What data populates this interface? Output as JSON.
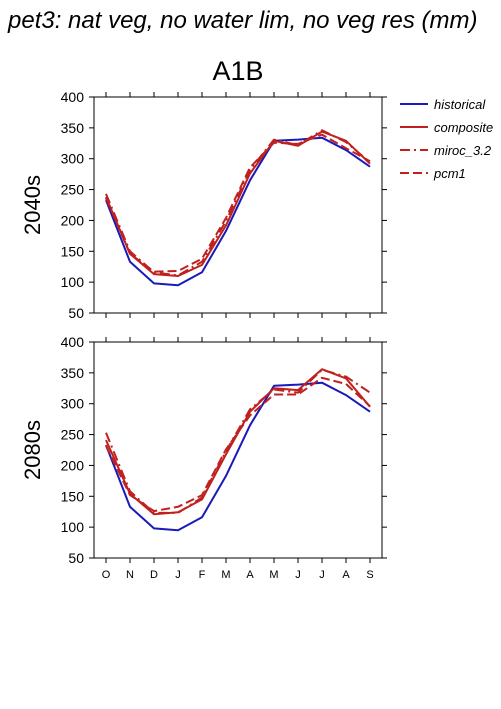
{
  "figure": {
    "title": "pet3: nat veg, no water lim, no veg res (mm)",
    "scenario": "A1B"
  },
  "legend": [
    {
      "name": "historical",
      "color": "#1a1ab8",
      "dash": "solid"
    },
    {
      "name": "composite",
      "color": "#c0201e",
      "dash": "solid"
    },
    {
      "name": "miroc_3.2",
      "color": "#c0201e",
      "dash": "dashdot"
    },
    {
      "name": "pcm1",
      "color": "#c0201e",
      "dash": "dashed"
    }
  ],
  "chart_data": [
    {
      "type": "line",
      "title": "A1B",
      "ylabel": "2040s",
      "xlabel": "",
      "categories": [
        "O",
        "N",
        "D",
        "J",
        "F",
        "M",
        "A",
        "M",
        "J",
        "J",
        "A",
        "S"
      ],
      "ylim": [
        50,
        400
      ],
      "yticks": [
        50,
        100,
        150,
        200,
        250,
        300,
        350,
        400
      ],
      "grid": false,
      "legend_position": "right",
      "series": [
        {
          "name": "historical",
          "values": [
            233,
            133,
            98,
            95,
            116,
            183,
            265,
            329,
            331,
            334,
            314,
            287
          ]
        },
        {
          "name": "composite",
          "values": [
            238,
            146,
            113,
            110,
            128,
            192,
            276,
            329,
            321,
            344,
            329,
            292
          ]
        },
        {
          "name": "miroc_3.2",
          "values": [
            243,
            150,
            116,
            111,
            133,
            199,
            282,
            331,
            322,
            346,
            327,
            294
          ]
        },
        {
          "name": "pcm1",
          "values": [
            236,
            146,
            117,
            118,
            138,
            204,
            286,
            326,
            324,
            339,
            317,
            296
          ]
        }
      ]
    },
    {
      "type": "line",
      "title": "",
      "ylabel": "2080s",
      "xlabel": "",
      "categories": [
        "O",
        "N",
        "D",
        "J",
        "F",
        "M",
        "A",
        "M",
        "J",
        "J",
        "A",
        "S"
      ],
      "ylim": [
        50,
        400
      ],
      "yticks": [
        50,
        100,
        150,
        200,
        250,
        300,
        350,
        400
      ],
      "grid": false,
      "legend_position": "none",
      "series": [
        {
          "name": "historical",
          "values": [
            233,
            133,
            98,
            95,
            116,
            183,
            265,
            329,
            331,
            334,
            314,
            287
          ]
        },
        {
          "name": "composite",
          "values": [
            241,
            154,
            121,
            124,
            145,
            218,
            287,
            325,
            322,
            356,
            341,
            295
          ]
        },
        {
          "name": "miroc_3.2",
          "values": [
            253,
            158,
            123,
            123,
            148,
            223,
            291,
            323,
            318,
            355,
            344,
            318
          ]
        },
        {
          "name": "pcm1",
          "values": [
            232,
            152,
            126,
            133,
            152,
            226,
            281,
            315,
            315,
            342,
            332,
            296
          ]
        }
      ]
    }
  ]
}
